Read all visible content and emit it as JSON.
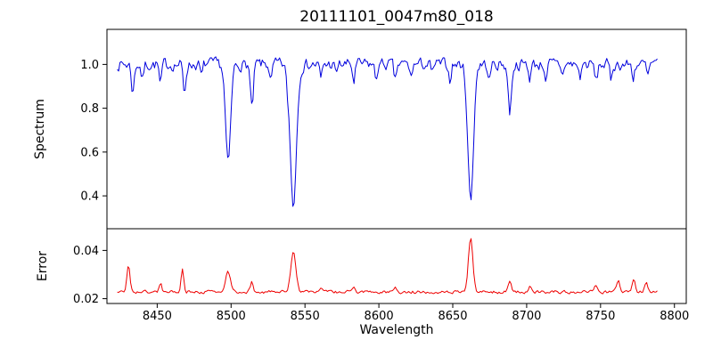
{
  "chart_data": {
    "type": "line",
    "title": "20111101_0047m80_018",
    "xlabel": "Wavelength",
    "xlim": [
      8416,
      8808
    ],
    "x_ticks": [
      8450,
      8500,
      8550,
      8600,
      8650,
      8700,
      8750,
      8800
    ],
    "x_range_data": [
      8423,
      8789
    ],
    "sample_step": 0.9,
    "frame_color": "#000000",
    "background": "#ffffff",
    "subplots": [
      {
        "name": "spectrum",
        "ylabel": "Spectrum",
        "ylim": [
          0.25,
          1.16
        ],
        "y_ticks": [
          0.4,
          0.6,
          0.8,
          1.0
        ],
        "tick_decimals": 1,
        "color": "#0000dd",
        "baseline": 1.0,
        "noise_amplitude": 0.028,
        "absorption_lines": [
          {
            "center": 8498.0,
            "depth": 0.46,
            "width": 1.7
          },
          {
            "center": 8542.1,
            "depth": 0.64,
            "width": 2.1
          },
          {
            "center": 8662.1,
            "depth": 0.62,
            "width": 1.9
          },
          {
            "center": 8514.1,
            "depth": 0.21,
            "width": 1.0
          },
          {
            "center": 8688.6,
            "depth": 0.22,
            "width": 1.1
          },
          {
            "center": 8433.5,
            "depth": 0.13,
            "width": 0.9
          },
          {
            "center": 8440.0,
            "depth": 0.07,
            "width": 0.8
          },
          {
            "center": 8452.2,
            "depth": 0.1,
            "width": 0.8
          },
          {
            "center": 8468.4,
            "depth": 0.13,
            "width": 0.9
          },
          {
            "center": 8480.0,
            "depth": 0.06,
            "width": 0.8
          },
          {
            "center": 8527.0,
            "depth": 0.08,
            "width": 0.8
          },
          {
            "center": 8538.0,
            "depth": 0.05,
            "width": 0.7
          },
          {
            "center": 8560.8,
            "depth": 0.07,
            "width": 0.8
          },
          {
            "center": 8571.0,
            "depth": 0.05,
            "width": 0.7
          },
          {
            "center": 8583.0,
            "depth": 0.08,
            "width": 0.8
          },
          {
            "center": 8598.0,
            "depth": 0.07,
            "width": 0.8
          },
          {
            "center": 8611.0,
            "depth": 0.08,
            "width": 0.8
          },
          {
            "center": 8621.6,
            "depth": 0.06,
            "width": 0.8
          },
          {
            "center": 8636.0,
            "depth": 0.05,
            "width": 0.7
          },
          {
            "center": 8648.0,
            "depth": 0.07,
            "width": 0.8
          },
          {
            "center": 8674.7,
            "depth": 0.08,
            "width": 0.8
          },
          {
            "center": 8702.0,
            "depth": 0.06,
            "width": 0.8
          },
          {
            "center": 8713.2,
            "depth": 0.07,
            "width": 0.8
          },
          {
            "center": 8724.0,
            "depth": 0.05,
            "width": 0.7
          },
          {
            "center": 8736.0,
            "depth": 0.06,
            "width": 0.8
          },
          {
            "center": 8747.0,
            "depth": 0.08,
            "width": 0.9
          },
          {
            "center": 8757.0,
            "depth": 0.07,
            "width": 0.8
          },
          {
            "center": 8772.0,
            "depth": 0.06,
            "width": 0.8
          },
          {
            "center": 8782.0,
            "depth": 0.06,
            "width": 0.8
          }
        ]
      },
      {
        "name": "error",
        "ylabel": "Error",
        "ylim": [
          0.018,
          0.049
        ],
        "y_ticks": [
          0.02,
          0.04
        ],
        "tick_decimals": 2,
        "color": "#ee0000",
        "baseline": 0.0228,
        "noise_amplitude": 0.0007,
        "emission_peaks": [
          {
            "center": 8430.5,
            "height": 0.0115,
            "width": 1.0
          },
          {
            "center": 8452.2,
            "height": 0.0035,
            "width": 0.9
          },
          {
            "center": 8467.0,
            "height": 0.0095,
            "width": 0.9
          },
          {
            "center": 8498.0,
            "height": 0.0085,
            "width": 1.5
          },
          {
            "center": 8514.1,
            "height": 0.0042,
            "width": 1.0
          },
          {
            "center": 8542.1,
            "height": 0.017,
            "width": 1.7
          },
          {
            "center": 8560.8,
            "height": 0.0022,
            "width": 0.9
          },
          {
            "center": 8583.0,
            "height": 0.0025,
            "width": 0.9
          },
          {
            "center": 8611.0,
            "height": 0.0022,
            "width": 0.9
          },
          {
            "center": 8662.1,
            "height": 0.0225,
            "width": 1.5
          },
          {
            "center": 8688.6,
            "height": 0.0045,
            "width": 1.0
          },
          {
            "center": 8702.0,
            "height": 0.0022,
            "width": 0.9
          },
          {
            "center": 8747.0,
            "height": 0.0025,
            "width": 0.9
          },
          {
            "center": 8762.0,
            "height": 0.0048,
            "width": 1.1
          },
          {
            "center": 8772.5,
            "height": 0.006,
            "width": 1.1
          },
          {
            "center": 8781.0,
            "height": 0.0045,
            "width": 1.0
          }
        ]
      }
    ]
  }
}
